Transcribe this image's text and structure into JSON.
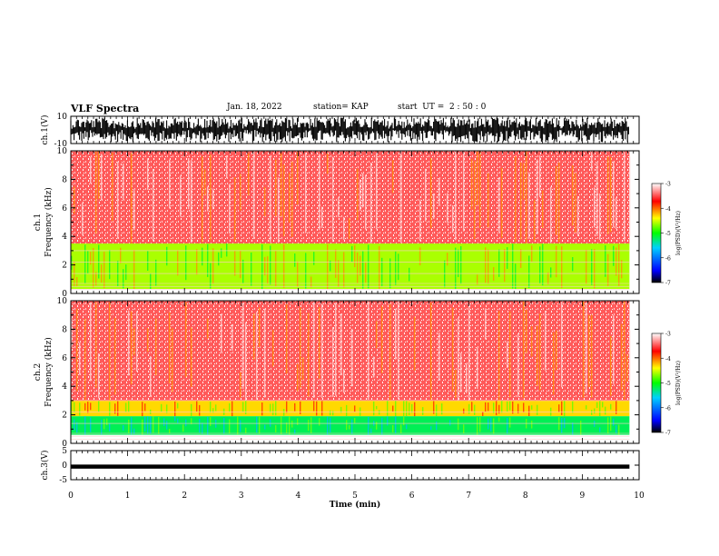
{
  "header": {
    "title": "VLF Spectra",
    "date": "Jan. 18, 2022",
    "station": "station= KAP",
    "start": "start  UT =  2 : 50 : 0"
  },
  "chart_data": [
    {
      "type": "line",
      "id": "ch1-waveform",
      "ylabel": "ch.1(V)",
      "ylim": [
        -10,
        10
      ],
      "y_tick_labels": [
        "10",
        "-10"
      ],
      "xlim": [
        0,
        10
      ],
      "data_extent_min": [
        0,
        9.83
      ],
      "description_values": {
        "typical_min_V": -9,
        "typical_max_V": 9
      }
    },
    {
      "type": "heatmap",
      "id": "ch1-spectrogram",
      "ylabel": "ch.1\nFrequency  (kHz)",
      "ylim": [
        0,
        10
      ],
      "y_tick_labels": [
        "0",
        "2",
        "4",
        "6",
        "8",
        "10"
      ],
      "xlim": [
        0,
        10
      ],
      "data_extent_min": [
        0,
        9.83
      ],
      "bands_khz": [
        {
          "from": 3.5,
          "to": 10,
          "log_psd": -3.6
        },
        {
          "from": 0.3,
          "to": 3.5,
          "log_psd": -4.6
        }
      ],
      "colorbar": {
        "label": "log(PSD)(V²/Hz)",
        "range": [
          -7,
          -3
        ],
        "tick_labels": [
          "-3",
          "-4",
          "-5",
          "-6",
          "-7"
        ]
      }
    },
    {
      "type": "heatmap",
      "id": "ch2-spectrogram",
      "ylabel": "ch.2\nFrequency  (kHz)",
      "ylim": [
        0,
        10
      ],
      "y_tick_labels": [
        "0",
        "2",
        "4",
        "6",
        "8",
        "10"
      ],
      "xlim": [
        0,
        10
      ],
      "data_extent_min": [
        0,
        9.83
      ],
      "bands_khz": [
        {
          "from": 3.0,
          "to": 10,
          "log_psd": -3.6
        },
        {
          "from": 1.9,
          "to": 3.0,
          "log_psd": -4.3
        },
        {
          "from": 0.6,
          "to": 1.9,
          "log_psd": -5.2
        }
      ],
      "colorbar": {
        "label": "log(PSD)(V²/Hz)",
        "range": [
          -7,
          -3
        ],
        "tick_labels": [
          "-3",
          "-4",
          "-5",
          "-6",
          "-7"
        ]
      }
    },
    {
      "type": "line",
      "id": "ch3-waveform",
      "ylabel": "ch.3(V)",
      "ylim": [
        -5,
        5
      ],
      "y_tick_labels": [
        "5",
        "0",
        "-5"
      ],
      "xlim": [
        0,
        10
      ],
      "data_extent_min": [
        0,
        9.83
      ],
      "description_values": {
        "typical_min_V": -1.2,
        "typical_max_V": 0.2
      }
    }
  ],
  "x_axis": {
    "label": "Time  (min)",
    "tick_labels": [
      "0",
      "1",
      "2",
      "3",
      "4",
      "5",
      "6",
      "7",
      "8",
      "9",
      "10"
    ],
    "range": [
      0,
      10
    ]
  }
}
